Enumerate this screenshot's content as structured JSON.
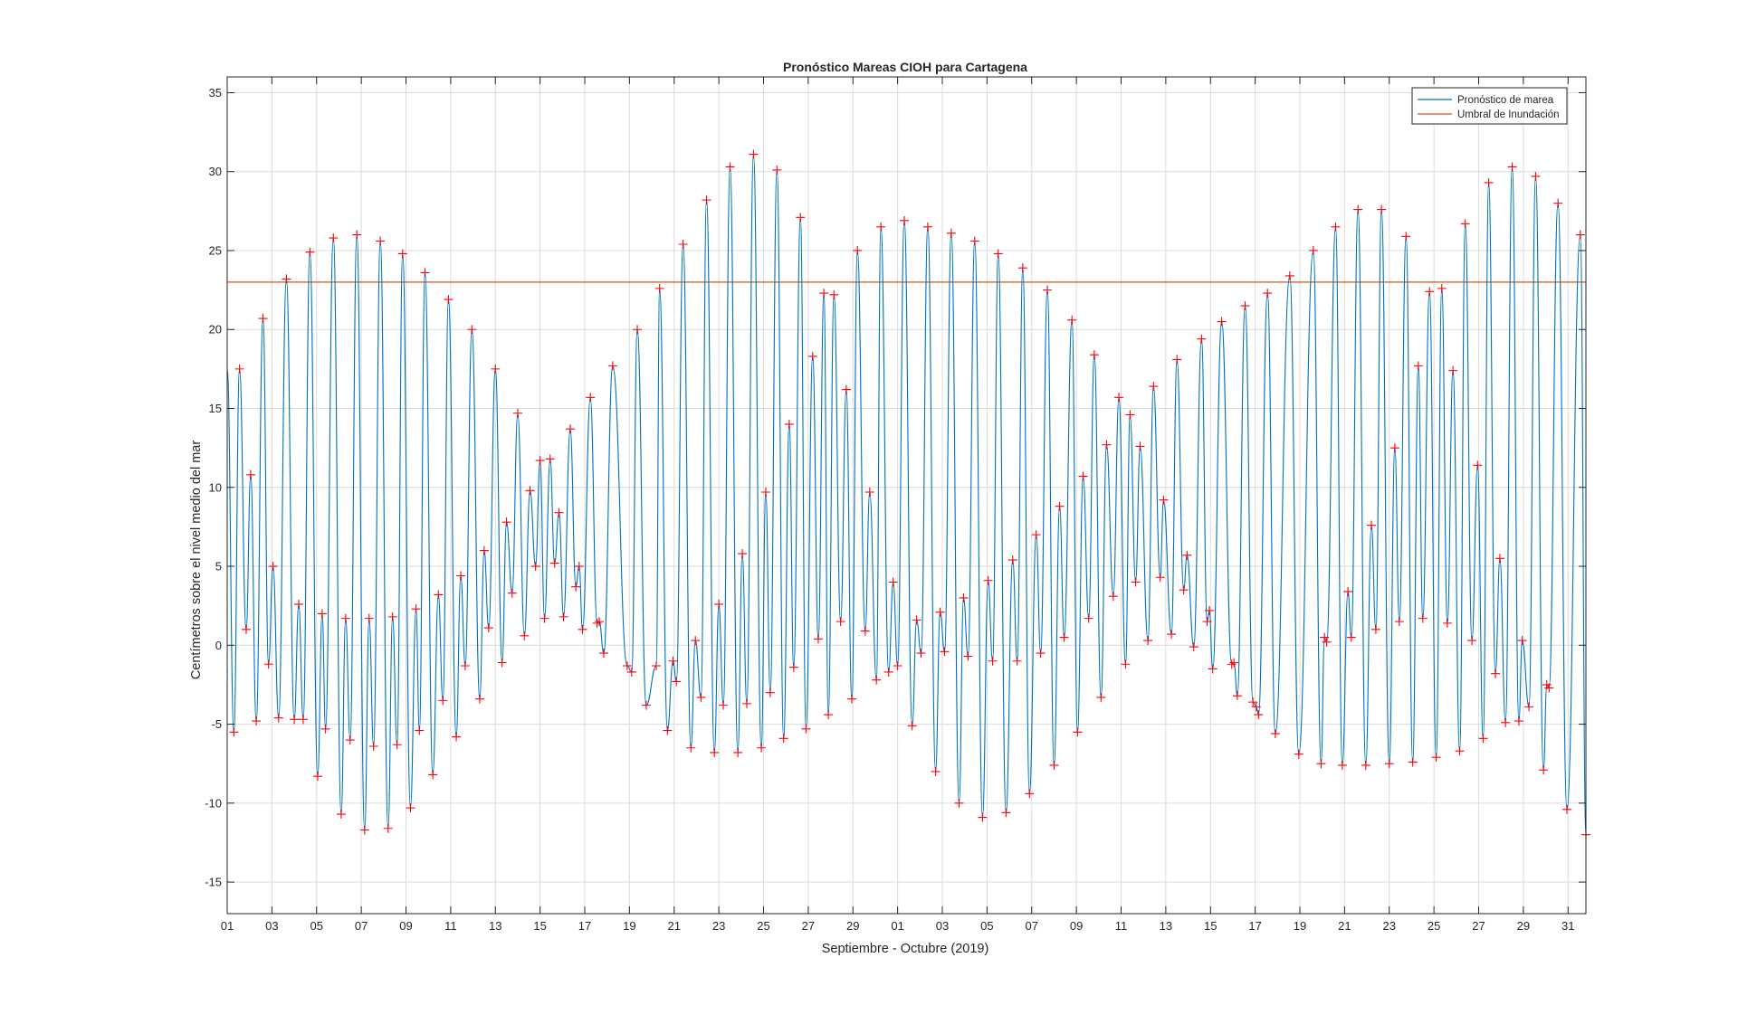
{
  "chart_data": {
    "type": "line",
    "title": "Pronóstico Mareas CIOH para Cartagena",
    "xlabel": "Septiembre - Octubre (2019)",
    "ylabel": "Centímetros sobre el nivel medio del mar",
    "x_range_days": [
      1,
      61.8
    ],
    "ylim": [
      -17,
      36
    ],
    "y_ticks": [
      -15,
      -10,
      -5,
      0,
      5,
      10,
      15,
      20,
      25,
      30,
      35
    ],
    "x_tick_days": [
      1,
      3,
      5,
      7,
      9,
      11,
      13,
      15,
      17,
      19,
      21,
      23,
      25,
      27,
      29,
      31,
      33,
      35,
      37,
      39,
      41,
      43,
      45,
      47,
      49,
      51,
      53,
      55,
      57,
      59,
      61
    ],
    "x_tick_labels": [
      "01",
      "03",
      "05",
      "07",
      "09",
      "11",
      "13",
      "15",
      "17",
      "19",
      "21",
      "23",
      "25",
      "27",
      "29",
      "01",
      "03",
      "05",
      "07",
      "09",
      "11",
      "13",
      "15",
      "17",
      "19",
      "21",
      "23",
      "25",
      "27",
      "29",
      "31"
    ],
    "grid": true,
    "legend_position": "top-right",
    "colors": {
      "forecast": "#0072BD",
      "threshold": "#D95319",
      "extrema_marker": "#FF0000"
    },
    "threshold": {
      "name": "Umbral de Inundación",
      "value": 23
    },
    "series": [
      {
        "name": "Pronóstico de marea",
        "start_value": 17.5,
        "end_value": -12,
        "extrema": [
          [
            1.3,
            -5.5
          ],
          [
            1.55,
            17.5
          ],
          [
            1.85,
            1
          ],
          [
            2.05,
            10.8
          ],
          [
            2.3,
            -4.8
          ],
          [
            2.6,
            20.7
          ],
          [
            2.85,
            -1.2
          ],
          [
            3.05,
            5
          ],
          [
            3.3,
            -4.6
          ],
          [
            3.65,
            23.2
          ],
          [
            4,
            -4.7
          ],
          [
            4.2,
            2.6
          ],
          [
            4.4,
            -4.7
          ],
          [
            4.7,
            24.9
          ],
          [
            5.05,
            -8.3
          ],
          [
            5.25,
            2
          ],
          [
            5.4,
            -5.3
          ],
          [
            5.75,
            25.8
          ],
          [
            6.1,
            -10.7
          ],
          [
            6.3,
            1.7
          ],
          [
            6.5,
            -6
          ],
          [
            6.8,
            26
          ],
          [
            7.15,
            -11.7
          ],
          [
            7.35,
            1.7
          ],
          [
            7.55,
            -6.4
          ],
          [
            7.85,
            25.6
          ],
          [
            8.2,
            -11.6
          ],
          [
            8.4,
            1.8
          ],
          [
            8.6,
            -6.3
          ],
          [
            8.85,
            24.8
          ],
          [
            9.2,
            -10.3
          ],
          [
            9.45,
            2.3
          ],
          [
            9.6,
            -5.4
          ],
          [
            9.85,
            23.6
          ],
          [
            10.2,
            -8.2
          ],
          [
            10.45,
            3.2
          ],
          [
            10.65,
            -3.5
          ],
          [
            10.9,
            21.9
          ],
          [
            11.25,
            -5.8
          ],
          [
            11.45,
            4.4
          ],
          [
            11.65,
            -1.3
          ],
          [
            11.95,
            20
          ],
          [
            12.3,
            -3.4
          ],
          [
            12.5,
            6
          ],
          [
            12.7,
            1.1
          ],
          [
            13,
            17.5
          ],
          [
            13.3,
            -1.1
          ],
          [
            13.5,
            7.8
          ],
          [
            13.75,
            3.3
          ],
          [
            14,
            14.7
          ],
          [
            14.3,
            0.6
          ],
          [
            14.55,
            9.8
          ],
          [
            14.8,
            5
          ],
          [
            15,
            11.7
          ],
          [
            15.2,
            1.7
          ],
          [
            15.45,
            11.8
          ],
          [
            15.65,
            5.2
          ],
          [
            15.85,
            8.4
          ],
          [
            16.05,
            1.8
          ],
          [
            16.35,
            13.7
          ],
          [
            16.6,
            3.7
          ],
          [
            16.75,
            5
          ],
          [
            16.9,
            1
          ],
          [
            17.25,
            15.7
          ],
          [
            17.55,
            1.4
          ],
          [
            17.65,
            1.5
          ],
          [
            17.85,
            -0.5
          ],
          [
            18.25,
            17.7
          ],
          [
            18.9,
            -1.3
          ],
          [
            19.1,
            -1.7
          ],
          [
            19.35,
            20
          ],
          [
            19.75,
            -3.8
          ],
          [
            20.2,
            -1.3
          ],
          [
            20.35,
            22.6
          ],
          [
            20.7,
            -5.4
          ],
          [
            20.95,
            -1
          ],
          [
            21.1,
            -2.3
          ],
          [
            21.4,
            25.4
          ],
          [
            21.75,
            -6.5
          ],
          [
            21.95,
            0.3
          ],
          [
            22.2,
            -3.3
          ],
          [
            22.45,
            28.2
          ],
          [
            22.8,
            -6.8
          ],
          [
            23,
            2.6
          ],
          [
            23.2,
            -3.8
          ],
          [
            23.5,
            30.3
          ],
          [
            23.85,
            -6.8
          ],
          [
            24.05,
            5.8
          ],
          [
            24.25,
            -3.7
          ],
          [
            24.55,
            31.1
          ],
          [
            24.9,
            -6.5
          ],
          [
            25.1,
            9.7
          ],
          [
            25.3,
            -3
          ],
          [
            25.6,
            30.1
          ],
          [
            25.9,
            -5.9
          ],
          [
            26.15,
            14
          ],
          [
            26.35,
            -1.4
          ],
          [
            26.65,
            27.1
          ],
          [
            26.9,
            -5.3
          ],
          [
            27.2,
            18.3
          ],
          [
            27.45,
            0.4
          ],
          [
            27.7,
            22.3
          ],
          [
            27.9,
            -4.4
          ],
          [
            28.15,
            22.2
          ],
          [
            28.45,
            1.5
          ],
          [
            28.7,
            16.2
          ],
          [
            28.95,
            -3.4
          ],
          [
            29.2,
            25
          ],
          [
            29.55,
            0.9
          ],
          [
            29.75,
            9.7
          ],
          [
            30.05,
            -2.2
          ],
          [
            30.25,
            26.5
          ],
          [
            30.6,
            -1.7
          ],
          [
            30.8,
            4
          ],
          [
            31,
            -1.3
          ],
          [
            31.3,
            26.9
          ],
          [
            31.65,
            -5.1
          ],
          [
            31.85,
            1.6
          ],
          [
            32.05,
            -0.5
          ],
          [
            32.35,
            26.5
          ],
          [
            32.7,
            -8
          ],
          [
            32.9,
            2.1
          ],
          [
            33.1,
            -0.4
          ],
          [
            33.4,
            26.1
          ],
          [
            33.75,
            -10
          ],
          [
            33.95,
            3
          ],
          [
            34.15,
            -0.7
          ],
          [
            34.45,
            25.6
          ],
          [
            34.8,
            -10.9
          ],
          [
            35.05,
            4.1
          ],
          [
            35.25,
            -1
          ],
          [
            35.5,
            24.8
          ],
          [
            35.85,
            -10.6
          ],
          [
            36.15,
            5.4
          ],
          [
            36.35,
            -1
          ],
          [
            36.6,
            23.9
          ],
          [
            36.9,
            -9.4
          ],
          [
            37.2,
            7
          ],
          [
            37.4,
            -0.5
          ],
          [
            37.7,
            22.5
          ],
          [
            38,
            -7.6
          ],
          [
            38.25,
            8.8
          ],
          [
            38.45,
            0.5
          ],
          [
            38.8,
            20.6
          ],
          [
            39.05,
            -5.5
          ],
          [
            39.3,
            10.7
          ],
          [
            39.55,
            1.7
          ],
          [
            39.8,
            18.4
          ],
          [
            40.1,
            -3.3
          ],
          [
            40.35,
            12.7
          ],
          [
            40.65,
            3.1
          ],
          [
            40.9,
            15.7
          ],
          [
            41.2,
            -1.2
          ],
          [
            41.4,
            14.6
          ],
          [
            41.65,
            4
          ],
          [
            41.85,
            12.6
          ],
          [
            42.2,
            0.3
          ],
          [
            42.45,
            16.4
          ],
          [
            42.75,
            4.3
          ],
          [
            42.9,
            9.2
          ],
          [
            43.25,
            0.7
          ],
          [
            43.5,
            18.1
          ],
          [
            43.8,
            3.5
          ],
          [
            43.95,
            5.7
          ],
          [
            44.25,
            -0.1
          ],
          [
            44.6,
            19.4
          ],
          [
            44.85,
            1.5
          ],
          [
            44.95,
            2.2
          ],
          [
            45.1,
            -1.5
          ],
          [
            45.5,
            20.5
          ],
          [
            45.95,
            -1.2
          ],
          [
            46.05,
            -1.1
          ],
          [
            46.2,
            -3.2
          ],
          [
            46.55,
            21.5
          ],
          [
            46.9,
            -3.6
          ],
          [
            47.05,
            -3.9
          ],
          [
            47.15,
            -4.4
          ],
          [
            47.55,
            22.3
          ],
          [
            47.9,
            -5.6
          ],
          [
            48.55,
            23.4
          ],
          [
            48.95,
            -6.9
          ],
          [
            49.6,
            25
          ],
          [
            49.95,
            -7.5
          ],
          [
            50.1,
            0.5
          ],
          [
            50.2,
            0.2
          ],
          [
            50.6,
            26.5
          ],
          [
            50.9,
            -7.6
          ],
          [
            51.15,
            3.4
          ],
          [
            51.3,
            0.5
          ],
          [
            51.6,
            27.6
          ],
          [
            51.95,
            -7.6
          ],
          [
            52.2,
            7.6
          ],
          [
            52.4,
            1
          ],
          [
            52.65,
            27.6
          ],
          [
            53,
            -7.5
          ],
          [
            53.25,
            12.5
          ],
          [
            53.45,
            1.5
          ],
          [
            53.75,
            25.9
          ],
          [
            54.05,
            -7.4
          ],
          [
            54.3,
            17.7
          ],
          [
            54.5,
            1.7
          ],
          [
            54.8,
            22.4
          ],
          [
            55.1,
            -7.1
          ],
          [
            55.35,
            22.6
          ],
          [
            55.6,
            1.4
          ],
          [
            55.85,
            17.4
          ],
          [
            56.15,
            -6.7
          ],
          [
            56.4,
            26.7
          ],
          [
            56.7,
            0.3
          ],
          [
            56.95,
            11.4
          ],
          [
            57.2,
            -5.9
          ],
          [
            57.45,
            29.3
          ],
          [
            57.75,
            -1.8
          ],
          [
            57.95,
            5.5
          ],
          [
            58.2,
            -4.9
          ],
          [
            58.5,
            30.3
          ],
          [
            58.8,
            -4.8
          ],
          [
            58.95,
            0.3
          ],
          [
            59.25,
            -3.9
          ],
          [
            59.55,
            29.7
          ],
          [
            59.9,
            -7.9
          ],
          [
            60.05,
            -2.5
          ],
          [
            60.15,
            -2.7
          ],
          [
            60.55,
            28
          ],
          [
            60.95,
            -10.4
          ],
          [
            61.55,
            26
          ],
          [
            61.8,
            -12
          ]
        ]
      }
    ]
  }
}
